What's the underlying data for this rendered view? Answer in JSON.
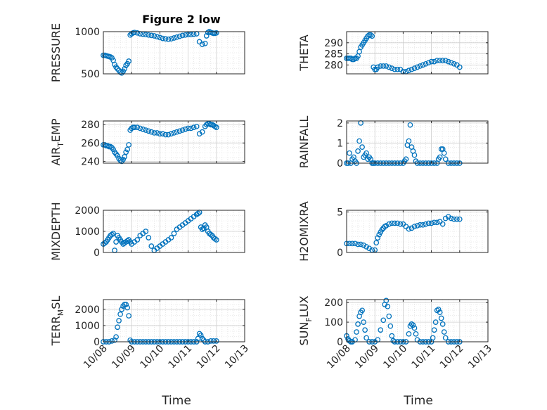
{
  "figure": {
    "title": "Figure 2 low",
    "xlabel": "Time"
  },
  "colors": {
    "marker": "#0072BD",
    "axis": "#262626",
    "grid": "#d9d9d9"
  },
  "chart_data": [
    {
      "type": "scatter",
      "ylabel": "PRESSURE",
      "title": "Figure 2 low",
      "xticks": [
        "10/08",
        "10/09",
        "10/10",
        "10/11",
        "10/12",
        "10/13"
      ],
      "xlim": [
        0,
        5
      ],
      "ylim": [
        500,
        1000
      ],
      "yticks": [
        "500",
        "1000"
      ],
      "ytick_values": [
        500,
        1000
      ],
      "grid": "on",
      "series": [
        {
          "x": [
            0,
            0.05,
            0.1,
            0.15,
            0.2,
            0.25,
            0.3,
            0.35,
            0.4,
            0.45,
            0.5,
            0.55,
            0.6,
            0.65,
            0.7,
            0.75,
            0.8,
            0.85,
            0.9,
            0.95,
            1.0,
            1.05,
            1.1,
            1.2,
            1.3,
            1.4,
            1.5,
            1.6,
            1.7,
            1.8,
            1.9,
            2.0,
            2.1,
            2.2,
            2.3,
            2.4,
            2.5,
            2.6,
            2.7,
            2.8,
            2.9,
            3.0,
            3.1,
            3.2,
            3.3,
            3.4,
            3.5,
            3.6,
            3.65,
            3.7,
            3.75,
            3.8,
            3.85,
            3.9,
            3.95,
            4.0
          ],
          "y": [
            720,
            720,
            715,
            710,
            705,
            700,
            690,
            660,
            610,
            580,
            560,
            540,
            520,
            510,
            530,
            560,
            600,
            620,
            650,
            960,
            975,
            985,
            990,
            985,
            975,
            970,
            965,
            960,
            955,
            950,
            940,
            930,
            920,
            915,
            910,
            915,
            925,
            935,
            945,
            955,
            960,
            965,
            965,
            970,
            975,
            880,
            850,
            860,
            950,
            990,
            1000,
            990,
            985,
            980,
            980,
            985
          ]
        }
      ]
    },
    {
      "type": "scatter",
      "ylabel": "THETA",
      "xticks": [
        "10/08",
        "10/09",
        "10/10",
        "10/11",
        "10/12",
        "10/13"
      ],
      "xlim": [
        0,
        5
      ],
      "ylim": [
        276,
        295
      ],
      "yticks": [
        "280",
        "285",
        "290"
      ],
      "ytick_values": [
        280,
        285,
        290
      ],
      "grid": "on",
      "series": [
        {
          "x": [
            0,
            0.05,
            0.1,
            0.15,
            0.2,
            0.25,
            0.3,
            0.35,
            0.4,
            0.45,
            0.5,
            0.55,
            0.6,
            0.65,
            0.7,
            0.75,
            0.8,
            0.85,
            0.9,
            0.95,
            1.0,
            1.05,
            1.1,
            1.2,
            1.3,
            1.4,
            1.5,
            1.6,
            1.7,
            1.8,
            1.9,
            2.0,
            2.1,
            2.2,
            2.3,
            2.4,
            2.5,
            2.6,
            2.7,
            2.8,
            2.9,
            3.0,
            3.1,
            3.2,
            3.3,
            3.4,
            3.5,
            3.6,
            3.7,
            3.8,
            3.9,
            4.0
          ],
          "y": [
            283,
            283,
            283,
            283,
            282.5,
            282.5,
            283,
            283,
            284,
            286,
            288,
            289,
            290,
            291,
            292,
            293,
            293.5,
            293.5,
            293,
            279,
            278,
            278,
            279,
            279.5,
            279.5,
            279.5,
            279,
            278.5,
            278,
            278,
            278,
            277,
            277,
            277.5,
            278,
            278.5,
            279,
            279.5,
            280,
            280.5,
            281,
            281.5,
            281.5,
            282,
            282,
            282,
            282,
            281.5,
            281,
            280.5,
            280,
            279
          ]
        }
      ]
    },
    {
      "type": "scatter",
      "ylabel": "AIR_TEMP",
      "xticks": [
        "10/08",
        "10/09",
        "10/10",
        "10/11",
        "10/12",
        "10/13"
      ],
      "xlim": [
        0,
        5
      ],
      "ylim": [
        238,
        284
      ],
      "yticks": [
        "240",
        "260",
        "280"
      ],
      "ytick_values": [
        240,
        260,
        280
      ],
      "grid": "on",
      "series": [
        {
          "x": [
            0,
            0.05,
            0.1,
            0.15,
            0.2,
            0.25,
            0.3,
            0.35,
            0.4,
            0.45,
            0.5,
            0.55,
            0.6,
            0.65,
            0.7,
            0.75,
            0.8,
            0.85,
            0.9,
            0.95,
            1.0,
            1.05,
            1.1,
            1.2,
            1.3,
            1.4,
            1.5,
            1.6,
            1.7,
            1.8,
            1.9,
            2.0,
            2.1,
            2.2,
            2.3,
            2.4,
            2.5,
            2.6,
            2.7,
            2.8,
            2.9,
            3.0,
            3.1,
            3.2,
            3.3,
            3.4,
            3.5,
            3.6,
            3.65,
            3.7,
            3.75,
            3.8,
            3.85,
            3.9,
            3.95,
            4.0
          ],
          "y": [
            258,
            258,
            257,
            257,
            256,
            256,
            255,
            253,
            250,
            248,
            246,
            243,
            241,
            240,
            242,
            245,
            250,
            253,
            258,
            274,
            276,
            277,
            277,
            277,
            276,
            275,
            274,
            273,
            272,
            271,
            271,
            270,
            270,
            269,
            269,
            270,
            271,
            272,
            273,
            274,
            275,
            276,
            276,
            277,
            278,
            270,
            272,
            278,
            280,
            281,
            281,
            280,
            280,
            279,
            278,
            277
          ]
        }
      ]
    },
    {
      "type": "scatter",
      "ylabel": "RAINFALL",
      "xticks": [
        "10/08",
        "10/09",
        "10/10",
        "10/11",
        "10/12",
        "10/13"
      ],
      "xlim": [
        0,
        5
      ],
      "ylim": [
        0,
        2.1
      ],
      "yticks": [
        "0",
        "1",
        "2"
      ],
      "ytick_values": [
        0,
        1,
        2
      ],
      "grid": "on",
      "series": [
        {
          "x": [
            0,
            0.05,
            0.1,
            0.15,
            0.2,
            0.25,
            0.3,
            0.35,
            0.4,
            0.45,
            0.5,
            0.55,
            0.6,
            0.65,
            0.7,
            0.75,
            0.8,
            0.85,
            0.9,
            0.95,
            1.0,
            1.1,
            1.2,
            1.3,
            1.4,
            1.5,
            1.6,
            1.7,
            1.8,
            1.9,
            2.0,
            2.05,
            2.1,
            2.15,
            2.2,
            2.25,
            2.3,
            2.35,
            2.4,
            2.45,
            2.5,
            2.6,
            2.7,
            2.8,
            2.9,
            3.0,
            3.1,
            3.2,
            3.25,
            3.3,
            3.35,
            3.4,
            3.45,
            3.5,
            3.6,
            3.7,
            3.8,
            3.9,
            4.0
          ],
          "y": [
            0,
            0,
            0.5,
            0,
            0.2,
            0.3,
            0.1,
            0,
            0.6,
            1.1,
            2.0,
            0.8,
            0.3,
            0.4,
            0.5,
            0.2,
            0.3,
            0.2,
            0,
            0,
            0,
            0,
            0,
            0,
            0,
            0,
            0,
            0,
            0,
            0,
            0,
            0.1,
            0.2,
            0.9,
            1.1,
            1.9,
            0.8,
            0.6,
            0.4,
            0.1,
            0,
            0,
            0,
            0,
            0,
            0,
            0,
            0,
            0.2,
            0.3,
            0.7,
            0.7,
            0.5,
            0.2,
            0,
            0,
            0,
            0,
            0
          ]
        }
      ]
    },
    {
      "type": "scatter",
      "ylabel": "MIXDEPTH",
      "xticks": [
        "10/08",
        "10/09",
        "10/10",
        "10/11",
        "10/12",
        "10/13"
      ],
      "xlim": [
        0,
        5
      ],
      "ylim": [
        0,
        2000
      ],
      "yticks": [
        "0",
        "1000",
        "2000"
      ],
      "ytick_values": [
        0,
        1000,
        2000
      ],
      "grid": "on",
      "series": [
        {
          "x": [
            0,
            0.05,
            0.1,
            0.15,
            0.2,
            0.25,
            0.3,
            0.35,
            0.4,
            0.45,
            0.5,
            0.55,
            0.6,
            0.65,
            0.7,
            0.75,
            0.8,
            0.85,
            0.9,
            0.95,
            1.0,
            1.1,
            1.2,
            1.3,
            1.4,
            1.5,
            1.6,
            1.7,
            1.8,
            1.9,
            2.0,
            2.1,
            2.2,
            2.3,
            2.4,
            2.5,
            2.6,
            2.7,
            2.8,
            2.9,
            3.0,
            3.1,
            3.2,
            3.3,
            3.35,
            3.4,
            3.45,
            3.5,
            3.55,
            3.6,
            3.65,
            3.7,
            3.75,
            3.8,
            3.85,
            3.9,
            3.95,
            4.0
          ],
          "y": [
            400,
            450,
            500,
            600,
            700,
            800,
            850,
            900,
            100,
            500,
            800,
            700,
            600,
            500,
            400,
            450,
            500,
            550,
            600,
            500,
            400,
            500,
            600,
            800,
            900,
            1000,
            700,
            300,
            100,
            200,
            300,
            400,
            500,
            600,
            700,
            900,
            1100,
            1200,
            1300,
            1400,
            1500,
            1600,
            1700,
            1800,
            1850,
            1900,
            1200,
            1100,
            1150,
            1300,
            1200,
            1000,
            900,
            850,
            800,
            700,
            650,
            600
          ]
        }
      ]
    },
    {
      "type": "scatter",
      "ylabel": "H2OMIXRA",
      "xticks": [
        "10/08",
        "10/09",
        "10/10",
        "10/11",
        "10/12",
        "10/13"
      ],
      "xlim": [
        0,
        5
      ],
      "ylim": [
        0,
        5.2
      ],
      "yticks": [
        "0",
        "5"
      ],
      "ytick_values": [
        0,
        5
      ],
      "grid": "on",
      "series": [
        {
          "x": [
            0,
            0.1,
            0.2,
            0.3,
            0.4,
            0.5,
            0.6,
            0.7,
            0.8,
            0.9,
            1.0,
            1.05,
            1.1,
            1.15,
            1.2,
            1.25,
            1.3,
            1.35,
            1.4,
            1.5,
            1.6,
            1.7,
            1.8,
            1.9,
            2.0,
            2.1,
            2.2,
            2.3,
            2.4,
            2.5,
            2.6,
            2.7,
            2.8,
            2.9,
            3.0,
            3.1,
            3.2,
            3.3,
            3.4,
            3.5,
            3.6,
            3.7,
            3.8,
            3.9,
            4.0
          ],
          "y": [
            1.1,
            1.1,
            1.1,
            1.1,
            1.0,
            1.0,
            0.9,
            0.7,
            0.5,
            0.3,
            0.3,
            1.2,
            1.8,
            2.2,
            2.5,
            2.8,
            3.0,
            3.2,
            3.3,
            3.5,
            3.6,
            3.6,
            3.6,
            3.5,
            3.5,
            3.2,
            2.9,
            3.0,
            3.2,
            3.3,
            3.4,
            3.4,
            3.5,
            3.6,
            3.6,
            3.7,
            3.7,
            3.8,
            3.5,
            4.2,
            4.4,
            4.2,
            4.1,
            4.1,
            4.1
          ]
        }
      ]
    },
    {
      "type": "scatter",
      "ylabel": "TERR_MSL",
      "xticks": [
        "10/08",
        "10/09",
        "10/10",
        "10/11",
        "10/12",
        "10/13"
      ],
      "xlim": [
        0,
        5
      ],
      "ylim": [
        0,
        2600
      ],
      "yticks": [
        "0",
        "1000",
        "2000"
      ],
      "ytick_values": [
        0,
        1000,
        2000
      ],
      "grid": "on",
      "series": [
        {
          "x": [
            0,
            0.1,
            0.2,
            0.3,
            0.4,
            0.45,
            0.5,
            0.55,
            0.6,
            0.65,
            0.7,
            0.75,
            0.8,
            0.85,
            0.9,
            0.95,
            1.0,
            1.1,
            1.2,
            1.3,
            1.4,
            1.5,
            1.6,
            1.7,
            1.8,
            1.9,
            2.0,
            2.1,
            2.2,
            2.3,
            2.4,
            2.5,
            2.6,
            2.7,
            2.8,
            2.9,
            3.0,
            3.1,
            3.2,
            3.3,
            3.35,
            3.4,
            3.45,
            3.5,
            3.55,
            3.6,
            3.7,
            3.8,
            3.9,
            4.0
          ],
          "y": [
            0,
            0,
            0,
            50,
            100,
            300,
            900,
            1300,
            1700,
            2000,
            2200,
            2300,
            2300,
            2100,
            1600,
            100,
            0,
            0,
            0,
            0,
            0,
            0,
            0,
            0,
            0,
            0,
            0,
            0,
            0,
            0,
            0,
            0,
            0,
            0,
            0,
            0,
            0,
            0,
            0,
            0,
            200,
            500,
            400,
            200,
            100,
            0,
            0,
            50,
            50,
            50
          ]
        }
      ]
    },
    {
      "type": "scatter",
      "ylabel": "SUN_FLUX",
      "xticks": [
        "10/08",
        "10/09",
        "10/10",
        "10/11",
        "10/12",
        "10/13"
      ],
      "xlim": [
        0,
        5
      ],
      "ylim": [
        0,
        215
      ],
      "yticks": [
        "0",
        "100",
        "200"
      ],
      "ytick_values": [
        0,
        100,
        200
      ],
      "grid": "on",
      "series": [
        {
          "x": [
            0,
            0.05,
            0.1,
            0.15,
            0.2,
            0.3,
            0.35,
            0.4,
            0.45,
            0.5,
            0.55,
            0.6,
            0.65,
            0.7,
            0.8,
            0.9,
            1.0,
            1.1,
            1.2,
            1.3,
            1.35,
            1.4,
            1.45,
            1.5,
            1.55,
            1.6,
            1.65,
            1.7,
            1.8,
            1.9,
            2.0,
            2.1,
            2.2,
            2.25,
            2.3,
            2.35,
            2.4,
            2.45,
            2.5,
            2.6,
            2.7,
            2.8,
            2.9,
            3.0,
            3.05,
            3.1,
            3.15,
            3.2,
            3.25,
            3.3,
            3.35,
            3.4,
            3.45,
            3.5,
            3.6,
            3.7,
            3.8,
            3.9,
            4.0
          ],
          "y": [
            30,
            15,
            5,
            0,
            0,
            10,
            50,
            90,
            130,
            150,
            160,
            100,
            60,
            20,
            0,
            0,
            0,
            10,
            60,
            110,
            190,
            210,
            180,
            130,
            80,
            30,
            5,
            0,
            0,
            0,
            0,
            0,
            40,
            80,
            90,
            85,
            70,
            40,
            10,
            0,
            0,
            0,
            0,
            0,
            20,
            60,
            100,
            160,
            165,
            150,
            120,
            90,
            50,
            20,
            0,
            0,
            0,
            0,
            0
          ]
        }
      ]
    }
  ]
}
